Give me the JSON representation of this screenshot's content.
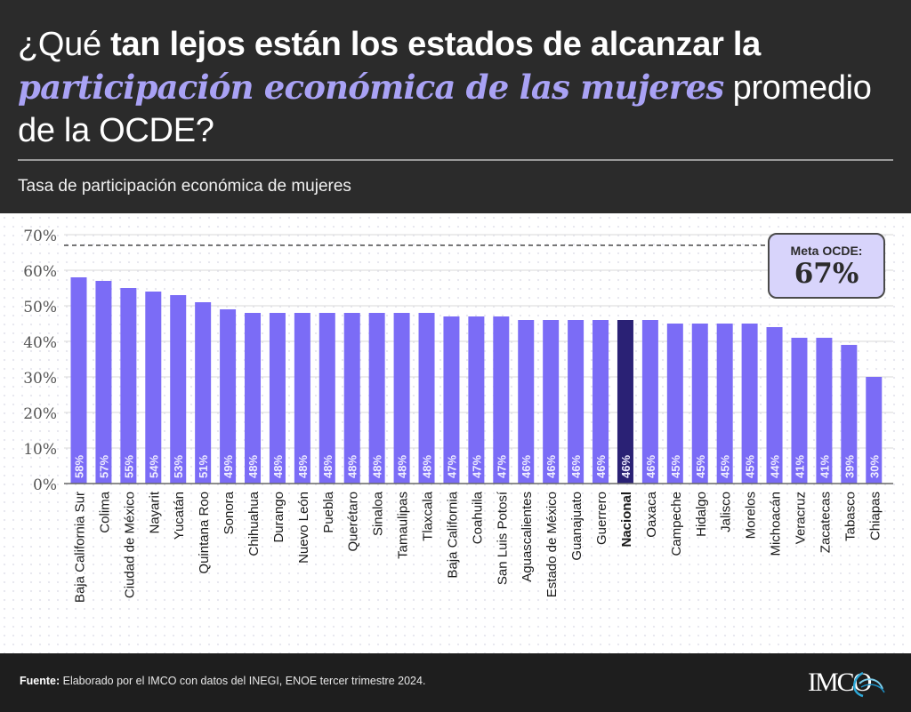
{
  "header": {
    "title_parts": {
      "p1": "¿Qué ",
      "p2": "tan lejos están los estados de alcanzar la ",
      "p3": "participación económica de las mujeres",
      "p4": " promedio de la OCDE?"
    },
    "subtitle": "Tasa de participación económica de mujeres"
  },
  "target_box": {
    "label": "Meta OCDE:",
    "value": "67%"
  },
  "footer": {
    "source_label": "Fuente:",
    "source_text": " Elaborado por el IMCO con datos del INEGI, ENOE tercer trimestre 2024.",
    "logo_text": "IMCO",
    "logo_icon": "imco-swirl-icon"
  },
  "colors": {
    "bar": "#7b6cf6",
    "highlight_bar": "#2a2175",
    "accent_text": "#a9a2f5",
    "header_bg": "#2b2b2b",
    "footer_bg": "#1e1e1e"
  },
  "chart_data": {
    "type": "bar",
    "title": "Tasa de participación económica de mujeres",
    "xlabel": "",
    "ylabel": "",
    "ylim": [
      0,
      70
    ],
    "yticks": [
      0,
      10,
      20,
      30,
      40,
      50,
      60,
      70
    ],
    "ytick_labels": [
      "0%",
      "10%",
      "20%",
      "30%",
      "40%",
      "50%",
      "60%",
      "70%"
    ],
    "grid": true,
    "highlight_category": "Nacional",
    "reference_line": {
      "value": 67,
      "label": "Meta OCDE: 67%",
      "style": "dashed"
    },
    "categories": [
      "Baja California Sur",
      "Colima",
      "Ciudad de México",
      "Nayarit",
      "Yucatán",
      "Quintana Roo",
      "Sonora",
      "Chihuahua",
      "Durango",
      "Nuevo León",
      "Puebla",
      "Querétaro",
      "Sinaloa",
      "Tamaulipas",
      "Tlaxcala",
      "Baja California",
      "Coahuila",
      "San Luis Potosí",
      "Aguascalientes",
      "Estado de México",
      "Guanajuato",
      "Guerrero",
      "Nacional",
      "Oaxaca",
      "Campeche",
      "Hidalgo",
      "Jalisco",
      "Morelos",
      "Michoacán",
      "Veracruz",
      "Zacatecas",
      "Tabasco",
      "Chiapas"
    ],
    "values": [
      58,
      57,
      55,
      54,
      53,
      51,
      49,
      48,
      48,
      48,
      48,
      48,
      48,
      48,
      48,
      47,
      47,
      47,
      46,
      46,
      46,
      46,
      46,
      46,
      45,
      45,
      45,
      45,
      44,
      41,
      41,
      39,
      30
    ],
    "value_labels": [
      "58%",
      "57%",
      "55%",
      "54%",
      "53%",
      "51%",
      "49%",
      "48%",
      "48%",
      "48%",
      "48%",
      "48%",
      "48%",
      "48%",
      "48%",
      "47%",
      "47%",
      "47%",
      "46%",
      "46%",
      "46%",
      "46%",
      "46%",
      "46%",
      "45%",
      "45%",
      "45%",
      "45%",
      "44%",
      "41%",
      "41%",
      "39%",
      "30%"
    ]
  }
}
